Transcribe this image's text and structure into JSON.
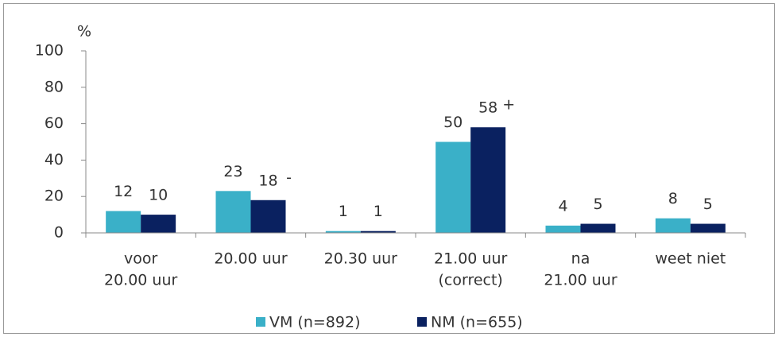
{
  "chart_data": {
    "type": "bar",
    "y_label": "%",
    "categories": [
      [
        "voor",
        "20.00 uur"
      ],
      [
        "20.00 uur"
      ],
      [
        "20.30 uur"
      ],
      [
        "21.00 uur",
        "(correct)"
      ],
      [
        "na",
        "21.00 uur"
      ],
      [
        "weet niet"
      ]
    ],
    "series": [
      {
        "name": "VM (n=892)",
        "color": "#3ab0c8",
        "values": [
          12,
          23,
          1,
          50,
          4,
          8
        ]
      },
      {
        "name": "NM (n=655)",
        "color": "#0a2160",
        "values": [
          10,
          18,
          1,
          58,
          5,
          5
        ]
      }
    ],
    "annotations": [
      {
        "series": 1,
        "index": 1,
        "text": "-"
      },
      {
        "series": 1,
        "index": 3,
        "text": "+"
      }
    ],
    "ylim": [
      0,
      100
    ],
    "yticks": [
      0,
      20,
      40,
      60,
      80,
      100
    ],
    "grid": false,
    "legend": "bottom"
  }
}
